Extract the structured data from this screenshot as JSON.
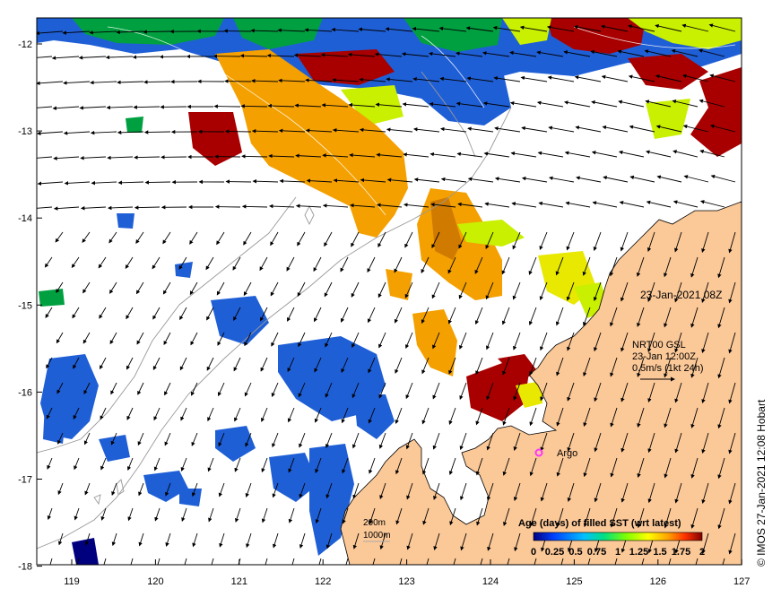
{
  "map": {
    "date_label": "23-Jan-2021 08Z",
    "current_legend": {
      "line1": "NRT00 GSL",
      "line2": "23-Jan 12:00Z",
      "line3": "0.5m/s (1kt 24h)"
    },
    "isobath_legend": [
      "200m",
      "1000m"
    ],
    "argo_label": "Argo",
    "colorbar": {
      "title": "Age (days) of filled SST (wrt latest)",
      "ticks": [
        "0",
        "0.25",
        "0.5",
        "0.75",
        "1",
        "1.25",
        "1.5",
        "1.75",
        "2"
      ]
    },
    "lon_ticks": [
      "119",
      "120",
      "121",
      "122",
      "123",
      "124",
      "125",
      "126",
      "127"
    ],
    "lat_ticks": [
      "-12",
      "-13",
      "-14",
      "-15",
      "-16",
      "-17",
      "-18"
    ],
    "credit": "© IMOS 27-Jan-2021 12:08 Hobart",
    "colors": {
      "land": "#fbc898",
      "age_0": "#1f5fd6",
      "age_05": "#00a040",
      "age_1": "#c8f000",
      "age_15": "#f4a000",
      "age_2": "#a80000",
      "argo": "#ff33ff"
    }
  }
}
